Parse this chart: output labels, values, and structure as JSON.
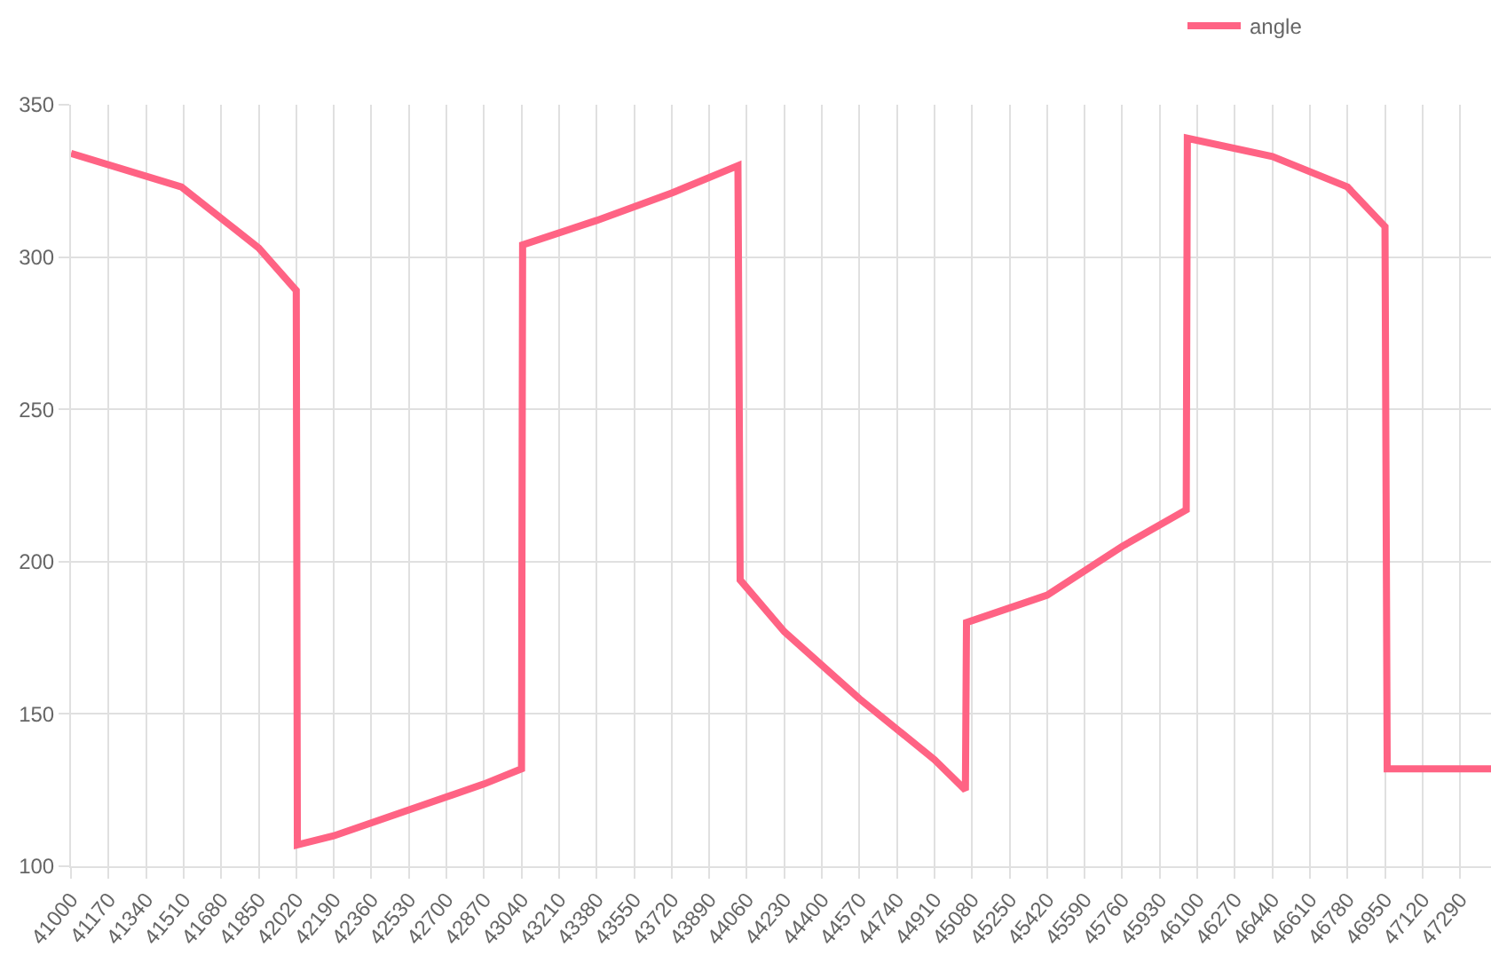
{
  "chart_data": {
    "type": "line",
    "legend": "top right",
    "grid": true,
    "marker": "none",
    "line_style": "solid",
    "x": [
      41000,
      41500,
      41850,
      42020,
      42025,
      42190,
      42870,
      43040,
      43045,
      43380,
      43720,
      44020,
      44030,
      44230,
      44570,
      44910,
      45050,
      45055,
      45420,
      45760,
      46050,
      46055,
      46440,
      46780,
      46950,
      46960,
      47430
    ],
    "series": [
      {
        "name": "angle",
        "color": "#ff6384",
        "values": [
          334,
          323,
          303,
          289,
          107,
          110,
          127,
          132,
          304,
          312,
          321,
          330,
          194,
          177,
          155,
          135,
          125,
          180,
          189,
          205,
          217,
          339,
          333,
          323,
          310,
          132,
          132
        ]
      }
    ],
    "xlim": [
      41000,
      47430
    ],
    "xticks": [
      41000,
      41170,
      41340,
      41510,
      41680,
      41850,
      42020,
      42190,
      42360,
      42530,
      42700,
      42870,
      43040,
      43210,
      43380,
      43550,
      43720,
      43890,
      44060,
      44230,
      44400,
      44570,
      44740,
      44910,
      45080,
      45250,
      45420,
      45590,
      45760,
      45930,
      46100,
      46270,
      46440,
      46610,
      46780,
      46950,
      47120,
      47290
    ],
    "ylim": [
      100,
      350
    ],
    "yticks": [
      100,
      150,
      200,
      250,
      300,
      350
    ]
  }
}
